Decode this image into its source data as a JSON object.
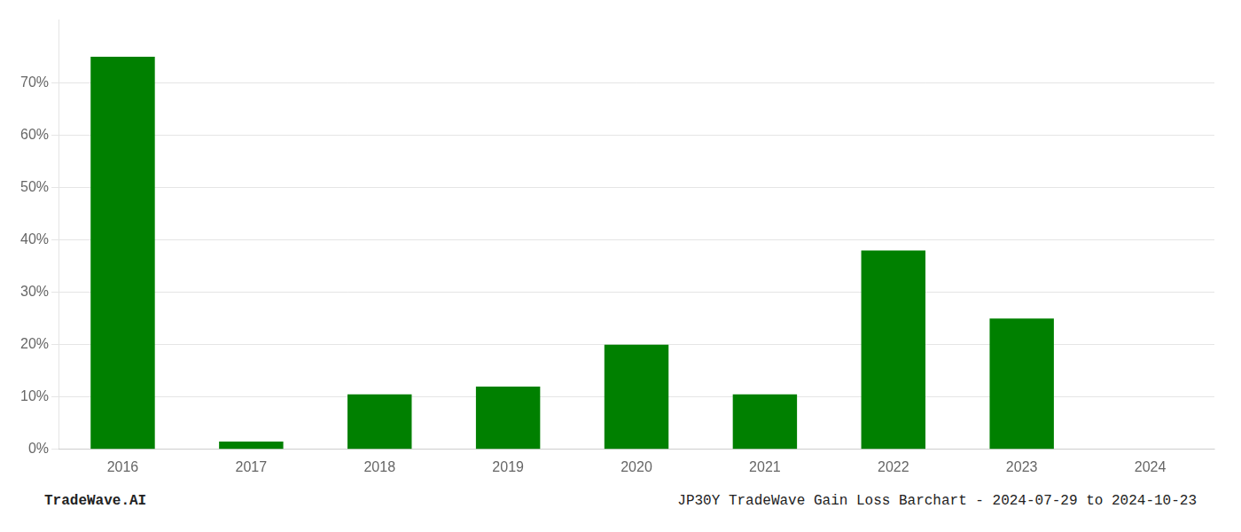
{
  "chart_data": {
    "type": "bar",
    "categories": [
      "2016",
      "2017",
      "2018",
      "2019",
      "2020",
      "2021",
      "2022",
      "2023",
      "2024"
    ],
    "values": [
      75.0,
      1.5,
      10.5,
      12.0,
      20.0,
      10.5,
      38.0,
      25.0,
      0.0
    ],
    "color": "#008000",
    "ylim": [
      0,
      82
    ],
    "yticks": [
      {
        "value": 0,
        "label": "0%"
      },
      {
        "value": 10,
        "label": "10%"
      },
      {
        "value": 20,
        "label": "20%"
      },
      {
        "value": 30,
        "label": "30%"
      },
      {
        "value": 40,
        "label": "40%"
      },
      {
        "value": 50,
        "label": "50%"
      },
      {
        "value": 60,
        "label": "60%"
      },
      {
        "value": 70,
        "label": "70%"
      }
    ],
    "grid": true,
    "annotations": [
      "TradeWave.AI",
      "JP30Y TradeWave Gain Loss Barchart - 2024-07-29 to 2024-10-23"
    ]
  }
}
